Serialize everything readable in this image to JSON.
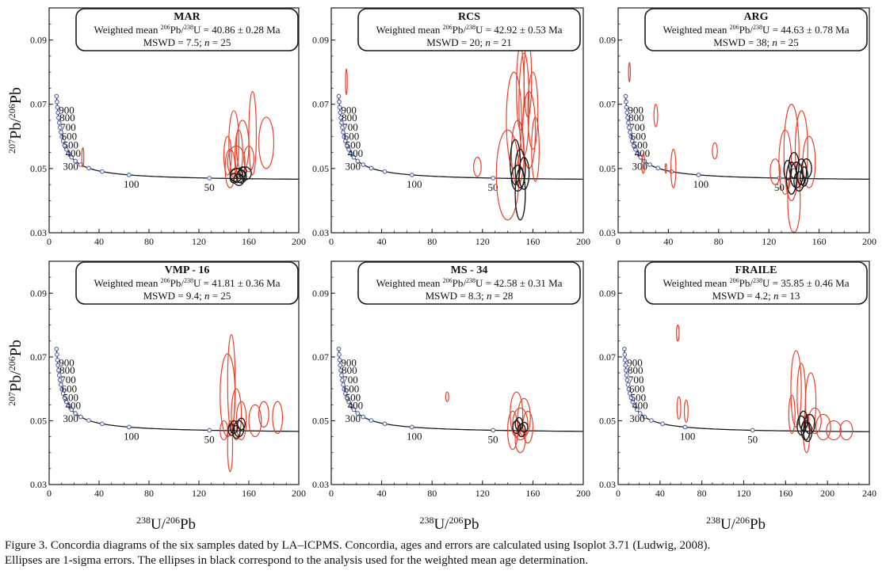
{
  "figure": {
    "caption_line1": "Figure 3. Concordia diagrams of the six samples dated by LA–ICPMS. Concordia, ages and errors are calculated using Isoplot 3.71 (Ludwig, 2008).",
    "caption_line2": "Ellipses are 1-sigma errors. The ellipses in black correspond to the analysis used for the weighted mean age determination.",
    "ylabel": {
      "base1": "207",
      "mid1": "Pb/",
      "base2": "206",
      "mid2": "Pb"
    },
    "xlabel": {
      "sup1": "238",
      "mid1": "U/",
      "sup2": "206",
      "mid2": "Pb"
    },
    "colors": {
      "rejected": "#e8402a",
      "accepted": "#1a1a1a",
      "concordia": "#1a1a1a",
      "marker": "#5a6fb0",
      "frame": "#1a1a1a"
    }
  },
  "chart_data": [
    {
      "type": "scatter",
      "sample": "MAR",
      "mean": "40.86 ± 0.28 Ma",
      "mswd": "7.5",
      "n": "25",
      "xlim": [
        0,
        200
      ],
      "xticks": [
        0,
        40,
        80,
        120,
        160,
        200
      ],
      "ylim": [
        0.03,
        0.1
      ],
      "yticks": [
        0.03,
        0.05,
        0.07,
        0.09
      ],
      "age_labels": [
        {
          "age": "900",
          "x": 4.0
        },
        {
          "age": "800",
          "x": 4.5
        },
        {
          "age": "700",
          "x": 5.2
        },
        {
          "age": "600",
          "x": 6.1
        },
        {
          "age": "500",
          "x": 7.3
        },
        {
          "age": "400",
          "x": 9.2
        },
        {
          "age": "300",
          "x": 12.3
        },
        {
          "age": "100",
          "x": 63.5
        },
        {
          "age": "50",
          "x": 128
        }
      ],
      "ellipses": [
        {
          "x": 148,
          "y": 0.058,
          "rx": 4,
          "ry": 0.01,
          "c": "r"
        },
        {
          "x": 155,
          "y": 0.057,
          "rx": 5,
          "ry": 0.008,
          "c": "r"
        },
        {
          "x": 163,
          "y": 0.061,
          "rx": 3,
          "ry": 0.013,
          "c": "r"
        },
        {
          "x": 174,
          "y": 0.058,
          "rx": 6,
          "ry": 0.008,
          "c": "r"
        },
        {
          "x": 150,
          "y": 0.052,
          "rx": 7,
          "ry": 0.005,
          "c": "r"
        },
        {
          "x": 145,
          "y": 0.05,
          "rx": 4,
          "ry": 0.006,
          "c": "r"
        },
        {
          "x": 160,
          "y": 0.053,
          "rx": 4,
          "ry": 0.004,
          "c": "r"
        },
        {
          "x": 152,
          "y": 0.055,
          "rx": 3,
          "ry": 0.007,
          "c": "r"
        },
        {
          "x": 143,
          "y": 0.054,
          "rx": 3,
          "ry": 0.006,
          "c": "r"
        },
        {
          "x": 27,
          "y": 0.0535,
          "rx": 0.8,
          "ry": 0.003,
          "c": "r"
        },
        {
          "x": 150,
          "y": 0.048,
          "rx": 5,
          "ry": 0.002,
          "c": "k"
        },
        {
          "x": 154,
          "y": 0.0475,
          "rx": 4,
          "ry": 0.002,
          "c": "k"
        },
        {
          "x": 157,
          "y": 0.0485,
          "rx": 5,
          "ry": 0.002,
          "c": "k"
        },
        {
          "x": 152,
          "y": 0.0465,
          "rx": 4,
          "ry": 0.0018,
          "c": "k"
        },
        {
          "x": 148,
          "y": 0.047,
          "rx": 3,
          "ry": 0.0015,
          "c": "k"
        },
        {
          "x": 155,
          "y": 0.049,
          "rx": 3,
          "ry": 0.0015,
          "c": "k"
        },
        {
          "x": 151,
          "y": 0.0478,
          "rx": 6,
          "ry": 0.0022,
          "c": "k"
        }
      ]
    },
    {
      "type": "scatter",
      "sample": "RCS",
      "mean": "42.92 ± 0.53 Ma",
      "mswd": "20",
      "n": "21",
      "xlim": [
        0,
        200
      ],
      "xticks": [
        0,
        40,
        80,
        120,
        160,
        200
      ],
      "ylim": [
        0.03,
        0.1
      ],
      "yticks": [
        0.03,
        0.05,
        0.07,
        0.09
      ],
      "age_labels": [
        {
          "age": "900",
          "x": 4.0
        },
        {
          "age": "800",
          "x": 4.5
        },
        {
          "age": "700",
          "x": 5.2
        },
        {
          "age": "600",
          "x": 6.1
        },
        {
          "age": "500",
          "x": 7.3
        },
        {
          "age": "400",
          "x": 9.2
        },
        {
          "age": "300",
          "x": 12.3
        },
        {
          "age": "100",
          "x": 63.5
        },
        {
          "age": "50",
          "x": 128
        }
      ],
      "ellipses": [
        {
          "x": 145,
          "y": 0.065,
          "rx": 6,
          "ry": 0.015,
          "c": "r"
        },
        {
          "x": 153,
          "y": 0.07,
          "rx": 4,
          "ry": 0.016,
          "c": "r"
        },
        {
          "x": 157,
          "y": 0.062,
          "rx": 5,
          "ry": 0.012,
          "c": "r"
        },
        {
          "x": 150,
          "y": 0.075,
          "rx": 3,
          "ry": 0.013,
          "c": "r"
        },
        {
          "x": 156,
          "y": 0.078,
          "rx": 3,
          "ry": 0.012,
          "c": "r"
        },
        {
          "x": 160,
          "y": 0.068,
          "rx": 4,
          "ry": 0.012,
          "c": "r"
        },
        {
          "x": 140,
          "y": 0.048,
          "rx": 9,
          "ry": 0.014,
          "c": "r"
        },
        {
          "x": 148,
          "y": 0.055,
          "rx": 5,
          "ry": 0.01,
          "c": "r"
        },
        {
          "x": 116,
          "y": 0.0505,
          "rx": 3,
          "ry": 0.003,
          "c": "r"
        },
        {
          "x": 12,
          "y": 0.077,
          "rx": 0.7,
          "ry": 0.004,
          "c": "r"
        },
        {
          "x": 162,
          "y": 0.056,
          "rx": 3,
          "ry": 0.01,
          "c": "r"
        },
        {
          "x": 148,
          "y": 0.047,
          "rx": 5,
          "ry": 0.004,
          "c": "k"
        },
        {
          "x": 150,
          "y": 0.05,
          "rx": 4,
          "ry": 0.006,
          "c": "k"
        },
        {
          "x": 146,
          "y": 0.052,
          "rx": 4,
          "ry": 0.007,
          "c": "k"
        },
        {
          "x": 153,
          "y": 0.0485,
          "rx": 4,
          "ry": 0.005,
          "c": "k"
        },
        {
          "x": 150,
          "y": 0.042,
          "rx": 4,
          "ry": 0.008,
          "c": "k"
        }
      ]
    },
    {
      "type": "scatter",
      "sample": "ARG",
      "mean": "44.63 ± 0.78 Ma",
      "mswd": "38",
      "n": "25",
      "xlim": [
        0,
        200
      ],
      "xticks": [
        0,
        40,
        80,
        120,
        160,
        200
      ],
      "ylim": [
        0.03,
        0.1
      ],
      "yticks": [
        0.03,
        0.05,
        0.07,
        0.09
      ],
      "age_labels": [
        {
          "age": "900",
          "x": 4.0
        },
        {
          "age": "800",
          "x": 4.5
        },
        {
          "age": "700",
          "x": 5.2
        },
        {
          "age": "600",
          "x": 6.1
        },
        {
          "age": "500",
          "x": 7.3
        },
        {
          "age": "400",
          "x": 9.2
        },
        {
          "age": "300",
          "x": 12.3
        },
        {
          "age": "100",
          "x": 63.5
        },
        {
          "age": "50",
          "x": 128
        }
      ],
      "ellipses": [
        {
          "x": 138,
          "y": 0.055,
          "rx": 6,
          "ry": 0.015,
          "c": "r"
        },
        {
          "x": 146,
          "y": 0.056,
          "rx": 5,
          "ry": 0.012,
          "c": "r"
        },
        {
          "x": 133,
          "y": 0.052,
          "rx": 5,
          "ry": 0.01,
          "c": "r"
        },
        {
          "x": 152,
          "y": 0.052,
          "rx": 5,
          "ry": 0.008,
          "c": "r"
        },
        {
          "x": 125,
          "y": 0.049,
          "rx": 4,
          "ry": 0.004,
          "c": "r"
        },
        {
          "x": 140,
          "y": 0.04,
          "rx": 5,
          "ry": 0.01,
          "c": "r"
        },
        {
          "x": 44,
          "y": 0.05,
          "rx": 2,
          "ry": 0.006,
          "c": "r"
        },
        {
          "x": 77,
          "y": 0.0555,
          "rx": 2,
          "ry": 0.0025,
          "c": "r"
        },
        {
          "x": 30,
          "y": 0.0665,
          "rx": 1.5,
          "ry": 0.0035,
          "c": "r"
        },
        {
          "x": 9,
          "y": 0.08,
          "rx": 0.7,
          "ry": 0.003,
          "c": "r"
        },
        {
          "x": 20,
          "y": 0.0515,
          "rx": 1.2,
          "ry": 0.003,
          "c": "r"
        },
        {
          "x": 38,
          "y": 0.05,
          "rx": 0.6,
          "ry": 0.0015,
          "c": "r"
        },
        {
          "x": 142,
          "y": 0.048,
          "rx": 5,
          "ry": 0.004,
          "c": "k"
        },
        {
          "x": 138,
          "y": 0.047,
          "rx": 4,
          "ry": 0.005,
          "c": "k"
        },
        {
          "x": 146,
          "y": 0.049,
          "rx": 4,
          "ry": 0.004,
          "c": "k"
        },
        {
          "x": 150,
          "y": 0.05,
          "rx": 4,
          "ry": 0.003,
          "c": "k"
        },
        {
          "x": 144,
          "y": 0.046,
          "rx": 4,
          "ry": 0.003,
          "c": "k"
        },
        {
          "x": 140,
          "y": 0.051,
          "rx": 4,
          "ry": 0.004,
          "c": "k"
        },
        {
          "x": 135,
          "y": 0.0495,
          "rx": 3,
          "ry": 0.003,
          "c": "k"
        },
        {
          "x": 148,
          "y": 0.0475,
          "rx": 3,
          "ry": 0.003,
          "c": "k"
        }
      ]
    },
    {
      "type": "scatter",
      "sample": "VMP - 16",
      "mean": "41.81 ± 0.36 Ma",
      "mswd": "9.4",
      "n": "25",
      "xlim": [
        0,
        200
      ],
      "xticks": [
        0,
        40,
        80,
        120,
        160,
        200
      ],
      "ylim": [
        0.03,
        0.1
      ],
      "yticks": [
        0.03,
        0.05,
        0.07,
        0.09
      ],
      "age_labels": [
        {
          "age": "900",
          "x": 4.0
        },
        {
          "age": "800",
          "x": 4.5
        },
        {
          "age": "700",
          "x": 5.2
        },
        {
          "age": "600",
          "x": 6.1
        },
        {
          "age": "500",
          "x": 7.3
        },
        {
          "age": "400",
          "x": 9.2
        },
        {
          "age": "300",
          "x": 12.3
        },
        {
          "age": "100",
          "x": 63.5
        },
        {
          "age": "50",
          "x": 128
        }
      ],
      "ellipses": [
        {
          "x": 143,
          "y": 0.058,
          "rx": 6,
          "ry": 0.013,
          "c": "r"
        },
        {
          "x": 146,
          "y": 0.062,
          "rx": 3,
          "ry": 0.015,
          "c": "r"
        },
        {
          "x": 150,
          "y": 0.052,
          "rx": 4,
          "ry": 0.008,
          "c": "r"
        },
        {
          "x": 154,
          "y": 0.05,
          "rx": 4,
          "ry": 0.006,
          "c": "r"
        },
        {
          "x": 165,
          "y": 0.05,
          "rx": 5,
          "ry": 0.005,
          "c": "r"
        },
        {
          "x": 172,
          "y": 0.052,
          "rx": 4,
          "ry": 0.004,
          "c": "r"
        },
        {
          "x": 183,
          "y": 0.051,
          "rx": 4,
          "ry": 0.005,
          "c": "r"
        },
        {
          "x": 145,
          "y": 0.042,
          "rx": 2,
          "ry": 0.008,
          "c": "r"
        },
        {
          "x": 140,
          "y": 0.047,
          "rx": 3,
          "ry": 0.003,
          "c": "r"
        },
        {
          "x": 148,
          "y": 0.048,
          "rx": 3,
          "ry": 0.002,
          "c": "k"
        },
        {
          "x": 152,
          "y": 0.0475,
          "rx": 4,
          "ry": 0.0025,
          "c": "k"
        },
        {
          "x": 150,
          "y": 0.0465,
          "rx": 3,
          "ry": 0.002,
          "c": "k"
        },
        {
          "x": 154,
          "y": 0.049,
          "rx": 3,
          "ry": 0.0018,
          "c": "k"
        },
        {
          "x": 146,
          "y": 0.0472,
          "rx": 2.5,
          "ry": 0.0018,
          "c": "k"
        }
      ]
    },
    {
      "type": "scatter",
      "sample": "MS - 34",
      "mean": "42.58 ± 0.31 Ma",
      "mswd": "8.3",
      "n": "28",
      "xlim": [
        0,
        200
      ],
      "xticks": [
        0,
        40,
        80,
        120,
        160,
        200
      ],
      "ylim": [
        0.03,
        0.1
      ],
      "yticks": [
        0.03,
        0.05,
        0.07,
        0.09
      ],
      "age_labels": [
        {
          "age": "900",
          "x": 4.0
        },
        {
          "age": "800",
          "x": 4.5
        },
        {
          "age": "700",
          "x": 5.2
        },
        {
          "age": "600",
          "x": 6.1
        },
        {
          "age": "500",
          "x": 7.3
        },
        {
          "age": "400",
          "x": 9.2
        },
        {
          "age": "300",
          "x": 12.3
        },
        {
          "age": "100",
          "x": 63.5
        },
        {
          "age": "50",
          "x": 128
        }
      ],
      "ellipses": [
        {
          "x": 147,
          "y": 0.052,
          "rx": 5,
          "ry": 0.007,
          "c": "r"
        },
        {
          "x": 153,
          "y": 0.051,
          "rx": 5,
          "ry": 0.006,
          "c": "r"
        },
        {
          "x": 150,
          "y": 0.049,
          "rx": 6,
          "ry": 0.005,
          "c": "r"
        },
        {
          "x": 144,
          "y": 0.047,
          "rx": 4,
          "ry": 0.006,
          "c": "r"
        },
        {
          "x": 156,
          "y": 0.048,
          "rx": 4,
          "ry": 0.005,
          "c": "r"
        },
        {
          "x": 150,
          "y": 0.044,
          "rx": 4,
          "ry": 0.004,
          "c": "r"
        },
        {
          "x": 92,
          "y": 0.0575,
          "rx": 1.2,
          "ry": 0.0015,
          "c": "r"
        },
        {
          "x": 147,
          "y": 0.048,
          "rx": 3,
          "ry": 0.002,
          "c": "k"
        },
        {
          "x": 151,
          "y": 0.047,
          "rx": 3,
          "ry": 0.002,
          "c": "k"
        },
        {
          "x": 149,
          "y": 0.049,
          "rx": 3,
          "ry": 0.002,
          "c": "k"
        },
        {
          "x": 153,
          "y": 0.048,
          "rx": 3,
          "ry": 0.0015,
          "c": "k"
        }
      ]
    },
    {
      "type": "scatter",
      "sample": "FRAILE",
      "mean": "35.85 ± 0.46 Ma",
      "mswd": "4.2",
      "n": "13",
      "xlim": [
        0,
        240
      ],
      "xticks": [
        0,
        40,
        80,
        120,
        160,
        200,
        240
      ],
      "ylim": [
        0.03,
        0.1
      ],
      "yticks": [
        0.03,
        0.05,
        0.07,
        0.09
      ],
      "age_labels": [
        {
          "age": "900",
          "x": 4.0
        },
        {
          "age": "800",
          "x": 4.5
        },
        {
          "age": "700",
          "x": 5.2
        },
        {
          "age": "600",
          "x": 6.1
        },
        {
          "age": "500",
          "x": 7.3
        },
        {
          "age": "400",
          "x": 9.2
        },
        {
          "age": "300",
          "x": 12.3
        },
        {
          "age": "100",
          "x": 63.5
        },
        {
          "age": "50",
          "x": 128
        }
      ],
      "ellipses": [
        {
          "x": 170,
          "y": 0.06,
          "rx": 5,
          "ry": 0.012,
          "c": "r"
        },
        {
          "x": 175,
          "y": 0.058,
          "rx": 4,
          "ry": 0.01,
          "c": "r"
        },
        {
          "x": 184,
          "y": 0.056,
          "rx": 5,
          "ry": 0.009,
          "c": "r"
        },
        {
          "x": 188,
          "y": 0.05,
          "rx": 6,
          "ry": 0.004,
          "c": "r"
        },
        {
          "x": 196,
          "y": 0.048,
          "rx": 7,
          "ry": 0.004,
          "c": "r"
        },
        {
          "x": 206,
          "y": 0.047,
          "rx": 7,
          "ry": 0.003,
          "c": "r"
        },
        {
          "x": 218,
          "y": 0.047,
          "rx": 6,
          "ry": 0.003,
          "c": "r"
        },
        {
          "x": 166,
          "y": 0.052,
          "rx": 3,
          "ry": 0.006,
          "c": "r"
        },
        {
          "x": 180,
          "y": 0.046,
          "rx": 3,
          "ry": 0.006,
          "c": "r"
        },
        {
          "x": 57,
          "y": 0.0775,
          "rx": 1.3,
          "ry": 0.0025,
          "c": "r"
        },
        {
          "x": 58,
          "y": 0.054,
          "rx": 1.8,
          "ry": 0.0035,
          "c": "r"
        },
        {
          "x": 65,
          "y": 0.053,
          "rx": 1.8,
          "ry": 0.0035,
          "c": "r"
        },
        {
          "x": 175,
          "y": 0.0485,
          "rx": 4,
          "ry": 0.003,
          "c": "k"
        },
        {
          "x": 179,
          "y": 0.047,
          "rx": 4,
          "ry": 0.003,
          "c": "k"
        },
        {
          "x": 183,
          "y": 0.049,
          "rx": 5,
          "ry": 0.003,
          "c": "k"
        },
        {
          "x": 177,
          "y": 0.05,
          "rx": 4,
          "ry": 0.003,
          "c": "k"
        },
        {
          "x": 181,
          "y": 0.0465,
          "rx": 4,
          "ry": 0.003,
          "c": "k"
        }
      ]
    }
  ]
}
